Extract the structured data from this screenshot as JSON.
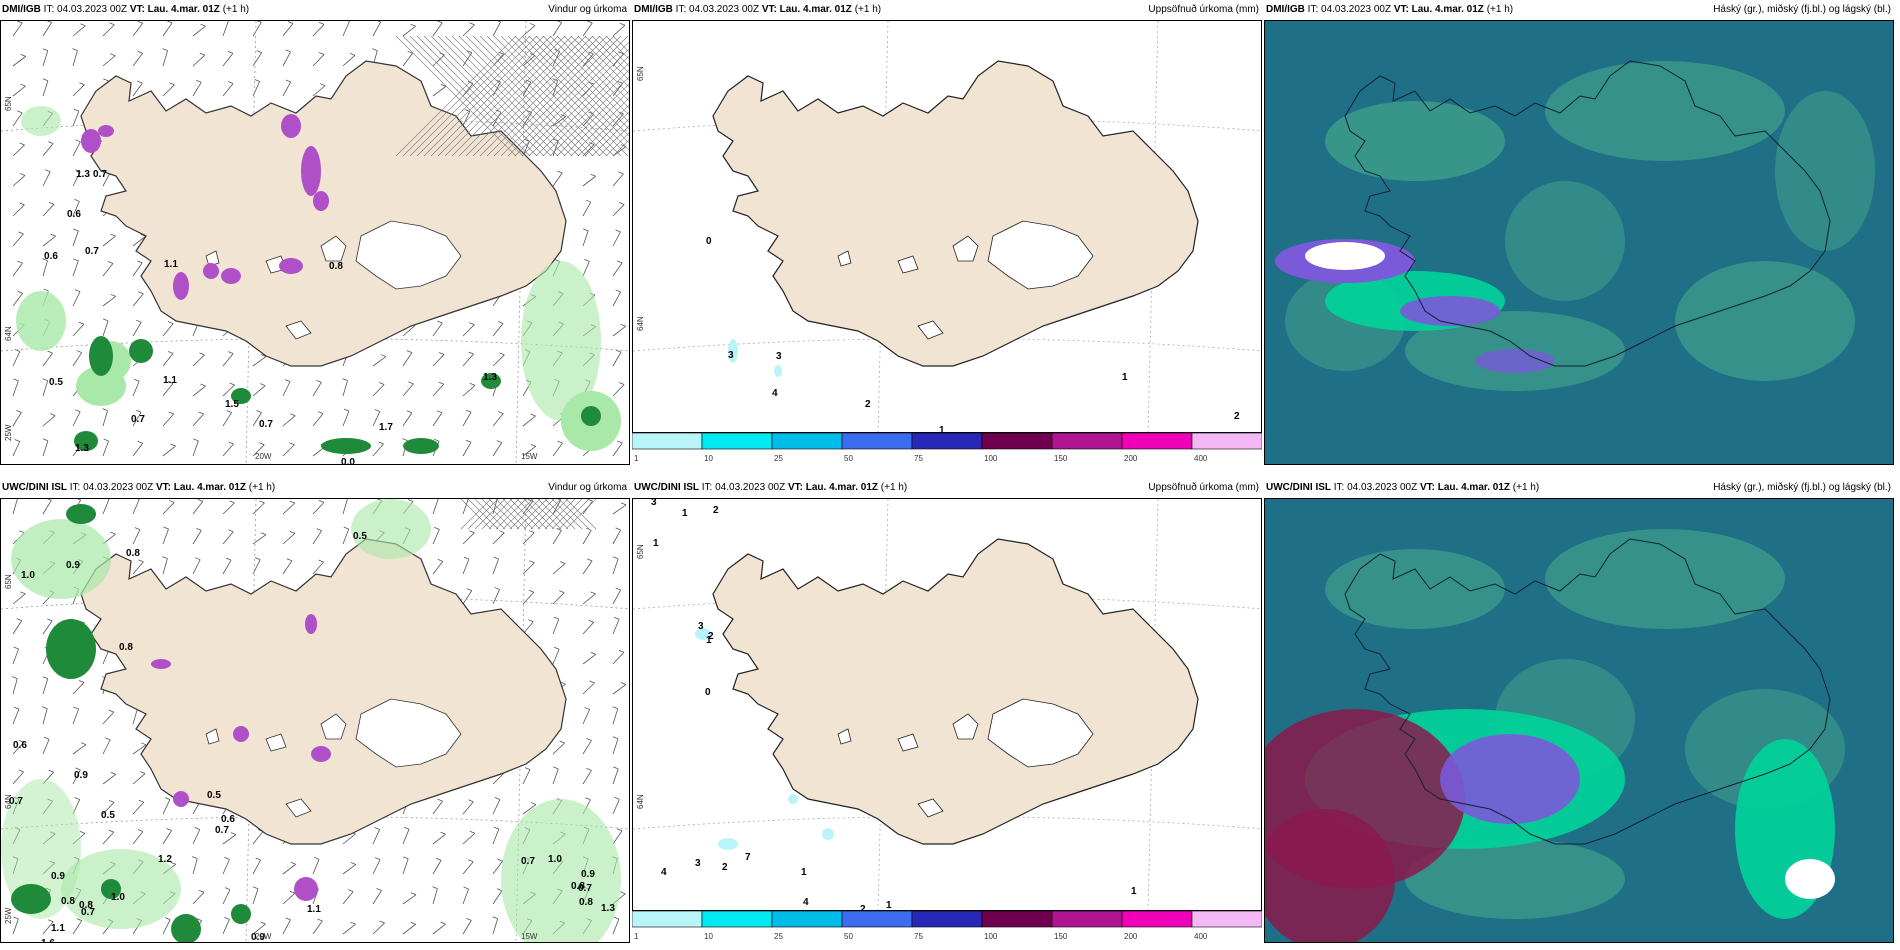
{
  "panels": [
    {
      "model": "DMI/IGB",
      "it": "IT: 04.03.2023 00Z",
      "vt_label": "VT:",
      "vt": "Lau. 4.mar. 01Z",
      "lead": "(+1 h)",
      "title": "Vindur og úrkoma"
    },
    {
      "model": "DMI/IGB",
      "it": "IT: 04.03.2023 00Z",
      "vt_label": "VT:",
      "vt": "Lau. 4.mar. 01Z",
      "lead": "(+1 h)",
      "title": "Uppsöfnuð úrkoma (mm)"
    },
    {
      "model": "DMI/IGB",
      "it": "IT: 04.03.2023 00Z",
      "vt_label": "VT:",
      "vt": "Lau. 4.mar. 01Z",
      "lead": "(+1 h)",
      "title": "Háský (gr.), miðský (fj.bl.) og lágský (bl.)"
    },
    {
      "model": "UWC/DINI ISL",
      "it": "IT: 04.03.2023 00Z",
      "vt_label": "VT:",
      "vt": "Lau. 4.mar. 01Z",
      "lead": "(+1 h)",
      "title": "Vindur og úrkoma"
    },
    {
      "model": "UWC/DINI ISL",
      "it": "IT: 04.03.2023 00Z",
      "vt_label": "VT:",
      "vt": "Lau. 4.mar. 01Z",
      "lead": "(+1 h)",
      "title": "Uppsöfnuð úrkoma (mm)"
    },
    {
      "model": "UWC/DINI ISL",
      "it": "IT: 04.03.2023 00Z",
      "vt_label": "VT:",
      "vt": "Lau. 4.mar. 01Z",
      "lead": "(+1 h)",
      "title": "Háský (gr.), miðský (fj.bl.) og lágský (bl.)"
    }
  ],
  "colorbar": {
    "ticks": [
      "1",
      "10",
      "25",
      "50",
      "75",
      "100",
      "150",
      "200",
      "400"
    ],
    "colors": [
      "#b8f4f8",
      "#00e8f0",
      "#00bce8",
      "#3c6cf0",
      "#2828b8",
      "#700050",
      "#b01490",
      "#f000b8",
      "#f4b8f4"
    ]
  },
  "axis_labels": {
    "lon_20": "20W",
    "lon_15": "15W",
    "lat_63": "63N",
    "lat_64": "64N",
    "lat_65": "65N",
    "lon_25": "25W"
  },
  "precip_labels_dmi": [
    "0.7",
    "0.6",
    "0.7",
    "0.6",
    "0.5",
    "1.1",
    "1.5",
    "0.7",
    "1.3",
    "1.7",
    "1.1",
    "1.3",
    "0.8",
    "0.7",
    "0.0",
    "1.3"
  ],
  "precip_labels_uwc": [
    "0.8",
    "0.5",
    "0.9",
    "1.0",
    "0.8",
    "0.6",
    "0.9",
    "0.7",
    "0.5",
    "0.7",
    "0.6",
    "0.5",
    "1.2",
    "0.9",
    "0.7",
    "1.0",
    "0.8",
    "0.7",
    "0.9",
    "0.8",
    "1.3",
    "0.8",
    "1.1",
    "1.6",
    "0.7",
    "0.8",
    "1.0",
    "0.9",
    "1.1"
  ],
  "accum_labels_dmi": [
    "0",
    "3",
    "3",
    "4",
    "2",
    "1",
    "1",
    "2"
  ],
  "accum_labels_uwc": [
    "3",
    "1",
    "2",
    "1",
    "3",
    "2",
    "1",
    "0",
    "4",
    "3",
    "2",
    "7",
    "1",
    "4",
    "2",
    "1",
    "1"
  ],
  "colors": {
    "land": "#f1e4d2",
    "ocean_cloud": "#1f6f86",
    "cloud_mid": "#3f9f8a",
    "cloud_low": "#00d49a",
    "cloud_high": "#7a5ad8",
    "snow": "#ffffff",
    "precip_green": "#1e8a3a",
    "precip_light": "#a8e8a8",
    "precip_purple": "#b050c8"
  }
}
